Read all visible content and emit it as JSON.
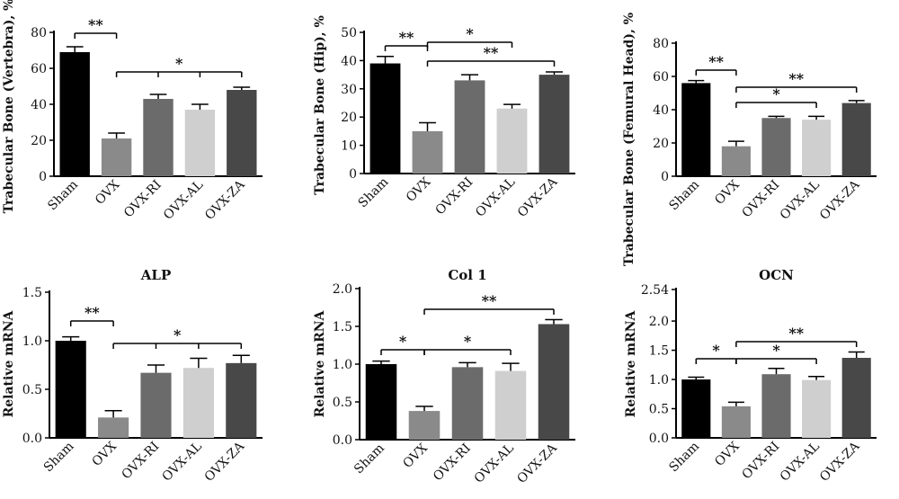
{
  "figure": {
    "colors": [
      "#000000",
      "#8a8a8a",
      "#6b6b6b",
      "#cfcfcf",
      "#484848"
    ]
  },
  "chart_data": [
    {
      "type": "bar",
      "title": "",
      "xlabel": "",
      "ylabel": "Trabecular Bone (Vertebra), %",
      "categories": [
        "Sham",
        "OVX",
        "OVX-RI",
        "OVX-AL",
        "OVX-ZA"
      ],
      "values": [
        69,
        21,
        43,
        37,
        48
      ],
      "errors": [
        3,
        3,
        2.5,
        3,
        1.5
      ],
      "ylim": [
        0,
        80
      ],
      "yticks": [
        "0",
        "20",
        "40",
        "60",
        "80"
      ],
      "significance": [
        {
          "from": 0,
          "to": 1,
          "label": "**",
          "level": 1
        },
        {
          "from": 1,
          "to": 4,
          "label": "*",
          "level": 0,
          "drops": [
            2,
            3
          ]
        }
      ]
    },
    {
      "type": "bar",
      "title": "",
      "xlabel": "",
      "ylabel": "Trabecular Bone (Hip), %",
      "categories": [
        "Sham",
        "OVX",
        "OVX-RI",
        "OVX-AL",
        "OVX-ZA"
      ],
      "values": [
        39,
        15,
        33,
        23,
        35
      ],
      "errors": [
        2.5,
        3,
        2,
        1.5,
        1
      ],
      "ylim": [
        0,
        50
      ],
      "yticks": [
        "0",
        "10",
        "20",
        "30",
        "40",
        "50"
      ],
      "significance": [
        {
          "from": 0,
          "to": 1,
          "label": "**",
          "level": 0
        },
        {
          "from": 1,
          "to": 3,
          "label": "*",
          "level": 1
        },
        {
          "from": 1,
          "to": 4,
          "label": "**",
          "level": 0
        }
      ]
    },
    {
      "type": "bar",
      "title": "",
      "xlabel": "",
      "ylabel": "Trabecular Bone (Femural Head), %",
      "categories": [
        "Sham",
        "OVX",
        "OVX-RI",
        "OVX-AL",
        "OVX-ZA"
      ],
      "values": [
        56,
        18,
        35,
        34,
        44
      ],
      "errors": [
        1.5,
        3,
        1,
        2,
        1.5
      ],
      "ylim": [
        0,
        80
      ],
      "yticks": [
        "0",
        "20",
        "40",
        "60",
        "80"
      ],
      "significance": [
        {
          "from": 0,
          "to": 1,
          "label": "**",
          "level": 1
        },
        {
          "from": 1,
          "to": 3,
          "label": "*",
          "level": 0
        },
        {
          "from": 1,
          "to": 4,
          "label": "**",
          "level": 1
        }
      ]
    },
    {
      "type": "bar",
      "title": "ALP",
      "xlabel": "",
      "ylabel": "Relative mRNA",
      "categories": [
        "Sham",
        "OVX",
        "OVX-RI",
        "OVX-AL",
        "OVX-ZA"
      ],
      "values": [
        1.0,
        0.21,
        0.67,
        0.72,
        0.77
      ],
      "errors": [
        0.04,
        0.07,
        0.08,
        0.1,
        0.08
      ],
      "ylim": [
        0,
        1.5
      ],
      "yticks": [
        "0.0",
        "0.5",
        "1.0",
        "1.5"
      ],
      "significance": [
        {
          "from": 0,
          "to": 1,
          "label": "**",
          "level": 1
        },
        {
          "from": 1,
          "to": 4,
          "label": "*",
          "level": 0,
          "drops": [
            2,
            3
          ]
        }
      ]
    },
    {
      "type": "bar",
      "title": "Col 1",
      "xlabel": "",
      "ylabel": "Relative mRNA",
      "categories": [
        "Sham",
        "OVX",
        "OVX-RI",
        "OVX-AL",
        "OVX-ZA"
      ],
      "values": [
        1.0,
        0.38,
        0.96,
        0.91,
        1.53
      ],
      "errors": [
        0.04,
        0.06,
        0.06,
        0.1,
        0.06
      ],
      "ylim": [
        0,
        2.0
      ],
      "yticks": [
        "0.0",
        "0.5",
        "1.0",
        "1.5",
        "2.0"
      ],
      "significance": [
        {
          "from": 0,
          "to": 1,
          "label": "*",
          "level": 0
        },
        {
          "from": 1,
          "to": 3,
          "label": "*",
          "level": 0
        },
        {
          "from": 1,
          "to": 4,
          "label": "**",
          "level": 2
        }
      ]
    },
    {
      "type": "bar",
      "title": "OCN",
      "xlabel": "",
      "ylabel": "Relative mRNA",
      "categories": [
        "Sham",
        "OVX",
        "OVX-RI",
        "OVX-AL",
        "OVX-ZA"
      ],
      "values": [
        1.0,
        0.54,
        1.09,
        0.99,
        1.37
      ],
      "errors": [
        0.04,
        0.07,
        0.1,
        0.06,
        0.1
      ],
      "ylim": [
        0,
        2.54
      ],
      "yticks": [
        "0.0",
        "0.5",
        "1.0",
        "1.5",
        "2.0",
        "2.54"
      ],
      "significance": [
        {
          "from": 0,
          "to": 1,
          "label": "*",
          "level": 0
        },
        {
          "from": 1,
          "to": 3,
          "label": "*",
          "level": 0
        },
        {
          "from": 1,
          "to": 4,
          "label": "**",
          "level": 1
        }
      ]
    }
  ]
}
